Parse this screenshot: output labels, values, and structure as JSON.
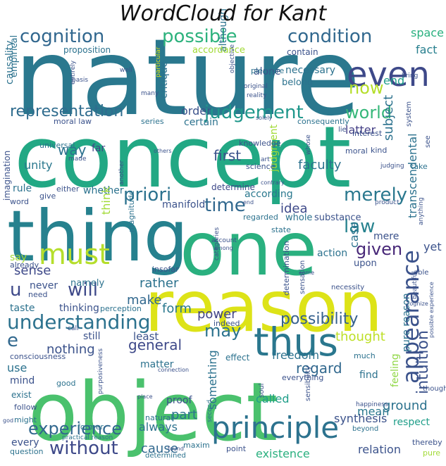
{
  "title": "WordCloud for Kant",
  "words": [
    {
      "text": "nature",
      "color": "#2a788e"
    },
    {
      "text": "concept",
      "color": "#22a884"
    },
    {
      "text": "thing",
      "color": "#26818e"
    },
    {
      "text": "one",
      "color": "#2ab07f"
    },
    {
      "text": "reason",
      "color": "#dde318"
    },
    {
      "text": "object",
      "color": "#4ac16d"
    },
    {
      "text": "principle",
      "color": "#2c728e"
    },
    {
      "text": "thus",
      "color": "#2a778e"
    },
    {
      "text": "appearance",
      "color": "#3b528b"
    },
    {
      "text": "must",
      "color": "#b5de2b"
    },
    {
      "text": "even",
      "color": "#3e4989"
    },
    {
      "text": "possible",
      "color": "#2db27d"
    },
    {
      "text": "condition",
      "color": "#31688e"
    },
    {
      "text": "cognition",
      "color": "#31678e"
    },
    {
      "text": "representation",
      "color": "#2f6c8e"
    },
    {
      "text": "judgement",
      "color": "#1f978b"
    },
    {
      "text": "understanding",
      "color": "#2c728e"
    },
    {
      "text": "experience",
      "color": "#31678e"
    },
    {
      "text": "without",
      "color": "#3e4989"
    },
    {
      "text": "intuition",
      "color": "#3b528b"
    },
    {
      "text": "world",
      "color": "#35b779"
    },
    {
      "text": "now",
      "color": "#b5de2b"
    },
    {
      "text": "given",
      "color": "#482878"
    },
    {
      "text": "priori",
      "color": "#2c728e"
    },
    {
      "text": "time",
      "color": "#31688e"
    },
    {
      "text": "merely",
      "color": "#2a788e"
    },
    {
      "text": "law",
      "color": "#26828e"
    },
    {
      "text": "will",
      "color": "#3e4989"
    },
    {
      "text": "may",
      "color": "#2c728e"
    },
    {
      "text": "u",
      "color": "#3e4989"
    },
    {
      "text": "e",
      "color": "#31688e"
    },
    {
      "text": "possibility",
      "color": "#35608d"
    },
    {
      "text": "general",
      "color": "#3e4989"
    },
    {
      "text": "nothing",
      "color": "#3b528b"
    },
    {
      "text": "regard",
      "color": "#31688e"
    },
    {
      "text": "space",
      "color": "#2ab07f"
    },
    {
      "text": "fact",
      "color": "#277f8e"
    },
    {
      "text": "order",
      "color": "#3b528b"
    },
    {
      "text": "way",
      "color": "#2c728e"
    },
    {
      "text": "first",
      "color": "#3b528b"
    },
    {
      "text": "idea",
      "color": "#3e4989"
    },
    {
      "text": "according",
      "color": "#2a788e"
    },
    {
      "text": "end",
      "color": "#1f9e89"
    },
    {
      "text": "subject",
      "color": "#2c728e"
    },
    {
      "text": "latter",
      "color": "#433e85"
    },
    {
      "text": "form",
      "color": "#2a788e"
    },
    {
      "text": "make",
      "color": "#31688e"
    },
    {
      "text": "sense",
      "color": "#3e4989"
    },
    {
      "text": "rather",
      "color": "#2c728e"
    },
    {
      "text": "power",
      "color": "#414487"
    },
    {
      "text": "thought",
      "color": "#bddf26"
    },
    {
      "text": "pure reason",
      "color": "#2c728e"
    },
    {
      "text": "cause",
      "color": "#31688e"
    },
    {
      "text": "part",
      "color": "#2c728e"
    },
    {
      "text": "freedom",
      "color": "#2c728e"
    },
    {
      "text": "ground",
      "color": "#2c728e"
    },
    {
      "text": "existence",
      "color": "#2ab07f"
    },
    {
      "text": "relation",
      "color": "#3b528b"
    },
    {
      "text": "mean",
      "color": "#2a788e"
    },
    {
      "text": "respect",
      "color": "#1f9e89"
    },
    {
      "text": "called",
      "color": "#1f9e89"
    },
    {
      "text": "something",
      "color": "#2c728e"
    },
    {
      "text": "always",
      "color": "#2c728e"
    },
    {
      "text": "synthesis",
      "color": "#3b528b"
    },
    {
      "text": "feeling",
      "color": "#8fd744"
    },
    {
      "text": "transcendental",
      "color": "#2c728e"
    },
    {
      "text": "faculty",
      "color": "#2c728e"
    },
    {
      "text": "judgment",
      "color": "#a2da37"
    },
    {
      "text": "certain",
      "color": "#2c728e"
    },
    {
      "text": "moral law",
      "color": "#3b528b"
    },
    {
      "text": "series",
      "color": "#2c728e"
    },
    {
      "text": "unity",
      "color": "#2a788e"
    },
    {
      "text": "far",
      "color": "#414487"
    },
    {
      "text": "rule",
      "color": "#2c728e"
    },
    {
      "text": "whether",
      "color": "#2c728e"
    },
    {
      "text": "think",
      "color": "#a2da37"
    },
    {
      "text": "manifold",
      "color": "#3b528b"
    },
    {
      "text": "determine",
      "color": "#3e4989"
    },
    {
      "text": "case",
      "color": "#2c728e"
    },
    {
      "text": "mere",
      "color": "#3b528b"
    },
    {
      "text": "whole",
      "color": "#2c728e"
    },
    {
      "text": "substance",
      "color": "#3b528b"
    },
    {
      "text": "yet",
      "color": "#3b528b"
    },
    {
      "text": "action",
      "color": "#2c728e"
    },
    {
      "text": "upon",
      "color": "#3b528b"
    },
    {
      "text": "namely",
      "color": "#2c728e"
    },
    {
      "text": "never",
      "color": "#3b528b"
    },
    {
      "text": "taste",
      "color": "#2c728e"
    },
    {
      "text": "thinking",
      "color": "#3b528b"
    },
    {
      "text": "perception",
      "color": "#2c728e"
    },
    {
      "text": "least",
      "color": "#3b528b"
    },
    {
      "text": "still",
      "color": "#3b528b"
    },
    {
      "text": "matter",
      "color": "#2c728e"
    },
    {
      "text": "effect",
      "color": "#2c728e"
    },
    {
      "text": "everything",
      "color": "#3b528b"
    },
    {
      "text": "consciousness",
      "color": "#3b528b"
    },
    {
      "text": "use",
      "color": "#2c728e"
    },
    {
      "text": "mind",
      "color": "#3b528b"
    },
    {
      "text": "good",
      "color": "#2c728e"
    },
    {
      "text": "exist",
      "color": "#2c728e"
    },
    {
      "text": "follow",
      "color": "#3b528b"
    },
    {
      "text": "might",
      "color": "#2c728e"
    },
    {
      "text": "every",
      "color": "#3b528b"
    },
    {
      "text": "question",
      "color": "#2c728e"
    },
    {
      "text": "proof",
      "color": "#3b528b"
    },
    {
      "text": "natural",
      "color": "#2c728e"
    },
    {
      "text": "maxim",
      "color": "#2c728e"
    },
    {
      "text": "point",
      "color": "#3b528b"
    },
    {
      "text": "determined",
      "color": "#2c728e"
    },
    {
      "text": "find",
      "color": "#2c728e"
    },
    {
      "text": "although",
      "color": "#2c728e"
    },
    {
      "text": "critique",
      "color": "#2c728e"
    },
    {
      "text": "alone",
      "color": "#3b528b"
    },
    {
      "text": "necessary",
      "color": "#2c728e"
    },
    {
      "text": "belong",
      "color": "#2c728e"
    },
    {
      "text": "pleasure",
      "color": "#2c728e"
    },
    {
      "text": "accordance",
      "color": "#a2da37"
    },
    {
      "text": "contain",
      "color": "#3b528b"
    },
    {
      "text": "proposition",
      "color": "#2c728e"
    },
    {
      "text": "causality",
      "color": "#2c728e"
    },
    {
      "text": "empirical",
      "color": "#2c728e"
    },
    {
      "text": "imagination",
      "color": "#3b528b"
    },
    {
      "text": "science",
      "color": "#3b528b"
    },
    {
      "text": "knowledge",
      "color": "#3b528b"
    },
    {
      "text": "universal",
      "color": "#2c728e"
    },
    {
      "text": "made",
      "color": "#3b528b"
    },
    {
      "text": "another",
      "color": "#3b528b"
    },
    {
      "text": "kind",
      "color": "#3b528b"
    },
    {
      "text": "take",
      "color": "#2c728e"
    },
    {
      "text": "moral",
      "color": "#3b528b"
    },
    {
      "text": "interest",
      "color": "#3b528b"
    },
    {
      "text": "say",
      "color": "#a2da37"
    },
    {
      "text": "already",
      "color": "#3b528b"
    },
    {
      "text": "need",
      "color": "#3b528b"
    },
    {
      "text": "insofar",
      "color": "#3b528b"
    },
    {
      "text": "determination",
      "color": "#3b528b"
    },
    {
      "text": "sensation",
      "color": "#3b528b"
    },
    {
      "text": "indeed",
      "color": "#3b528b"
    },
    {
      "text": "call",
      "color": "#3b528b"
    },
    {
      "text": "much",
      "color": "#2c728e"
    },
    {
      "text": "soul",
      "color": "#3b528b"
    },
    {
      "text": "second",
      "color": "#2c728e"
    },
    {
      "text": "former",
      "color": "#2c728e"
    },
    {
      "text": "happiness",
      "color": "#3b528b"
    },
    {
      "text": "beyond",
      "color": "#2c728e"
    },
    {
      "text": "thereby",
      "color": "#3b528b"
    },
    {
      "text": "pure",
      "color": "#a2da37"
    },
    {
      "text": "though",
      "color": "#3b528b"
    },
    {
      "text": "state",
      "color": "#2c728e"
    },
    {
      "text": "regarded",
      "color": "#2c728e"
    },
    {
      "text": "either",
      "color": "#3b528b"
    },
    {
      "text": "give",
      "color": "#3b528b"
    },
    {
      "text": "word",
      "color": "#3b528b"
    },
    {
      "text": "magnitude",
      "color": "#2c728e"
    },
    {
      "text": "connection",
      "color": "#3b528b"
    },
    {
      "text": "practical reason",
      "color": "#2c728e"
    },
    {
      "text": "purposiveness",
      "color": "#3b528b"
    },
    {
      "text": "necessity",
      "color": "#3b528b"
    },
    {
      "text": "able",
      "color": "#3b528b"
    },
    {
      "text": "beautiful",
      "color": "#3b528b"
    },
    {
      "text": "sensibility",
      "color": "#3b528b"
    },
    {
      "text": "account",
      "color": "#3b528b"
    },
    {
      "text": "among",
      "color": "#3b528b"
    },
    {
      "text": "art",
      "color": "#3b528b"
    },
    {
      "text": "others",
      "color": "#3b528b"
    },
    {
      "text": "whose",
      "color": "#3b528b"
    },
    {
      "text": "judging",
      "color": "#3b528b"
    },
    {
      "text": "product",
      "color": "#3b528b"
    },
    {
      "text": "anything",
      "color": "#3b528b"
    },
    {
      "text": "consequently",
      "color": "#2c728e"
    },
    {
      "text": "solely",
      "color": "#3b528b"
    },
    {
      "text": "lie",
      "color": "#3b528b"
    },
    {
      "text": "bring",
      "color": "#3b528b"
    },
    {
      "text": "system",
      "color": "#3b528b"
    },
    {
      "text": "see",
      "color": "#3b528b"
    },
    {
      "text": "objective",
      "color": "#3b528b"
    },
    {
      "text": "many",
      "color": "#3b528b"
    },
    {
      "text": "basis",
      "color": "#3b528b"
    },
    {
      "text": "entirely",
      "color": "#3b528b"
    },
    {
      "text": "well",
      "color": "#3b528b"
    },
    {
      "text": "particular",
      "color": "#dde318"
    },
    {
      "text": "reality",
      "color": "#3b528b"
    },
    {
      "text": "original",
      "color": "#3b528b"
    },
    {
      "text": "cognize",
      "color": "#3b528b"
    },
    {
      "text": "possible experience",
      "color": "#3b528b"
    },
    {
      "text": "place",
      "color": "#3b528b"
    },
    {
      "text": "found",
      "color": "#3b528b"
    },
    {
      "text": "god",
      "color": "#3b528b"
    },
    {
      "text": "contrary",
      "color": "#3b528b"
    },
    {
      "text": "end",
      "color": "#3b528b"
    },
    {
      "text": "categories",
      "color": "#3b528b"
    },
    {
      "text": "come",
      "color": "#3b528b"
    }
  ]
}
